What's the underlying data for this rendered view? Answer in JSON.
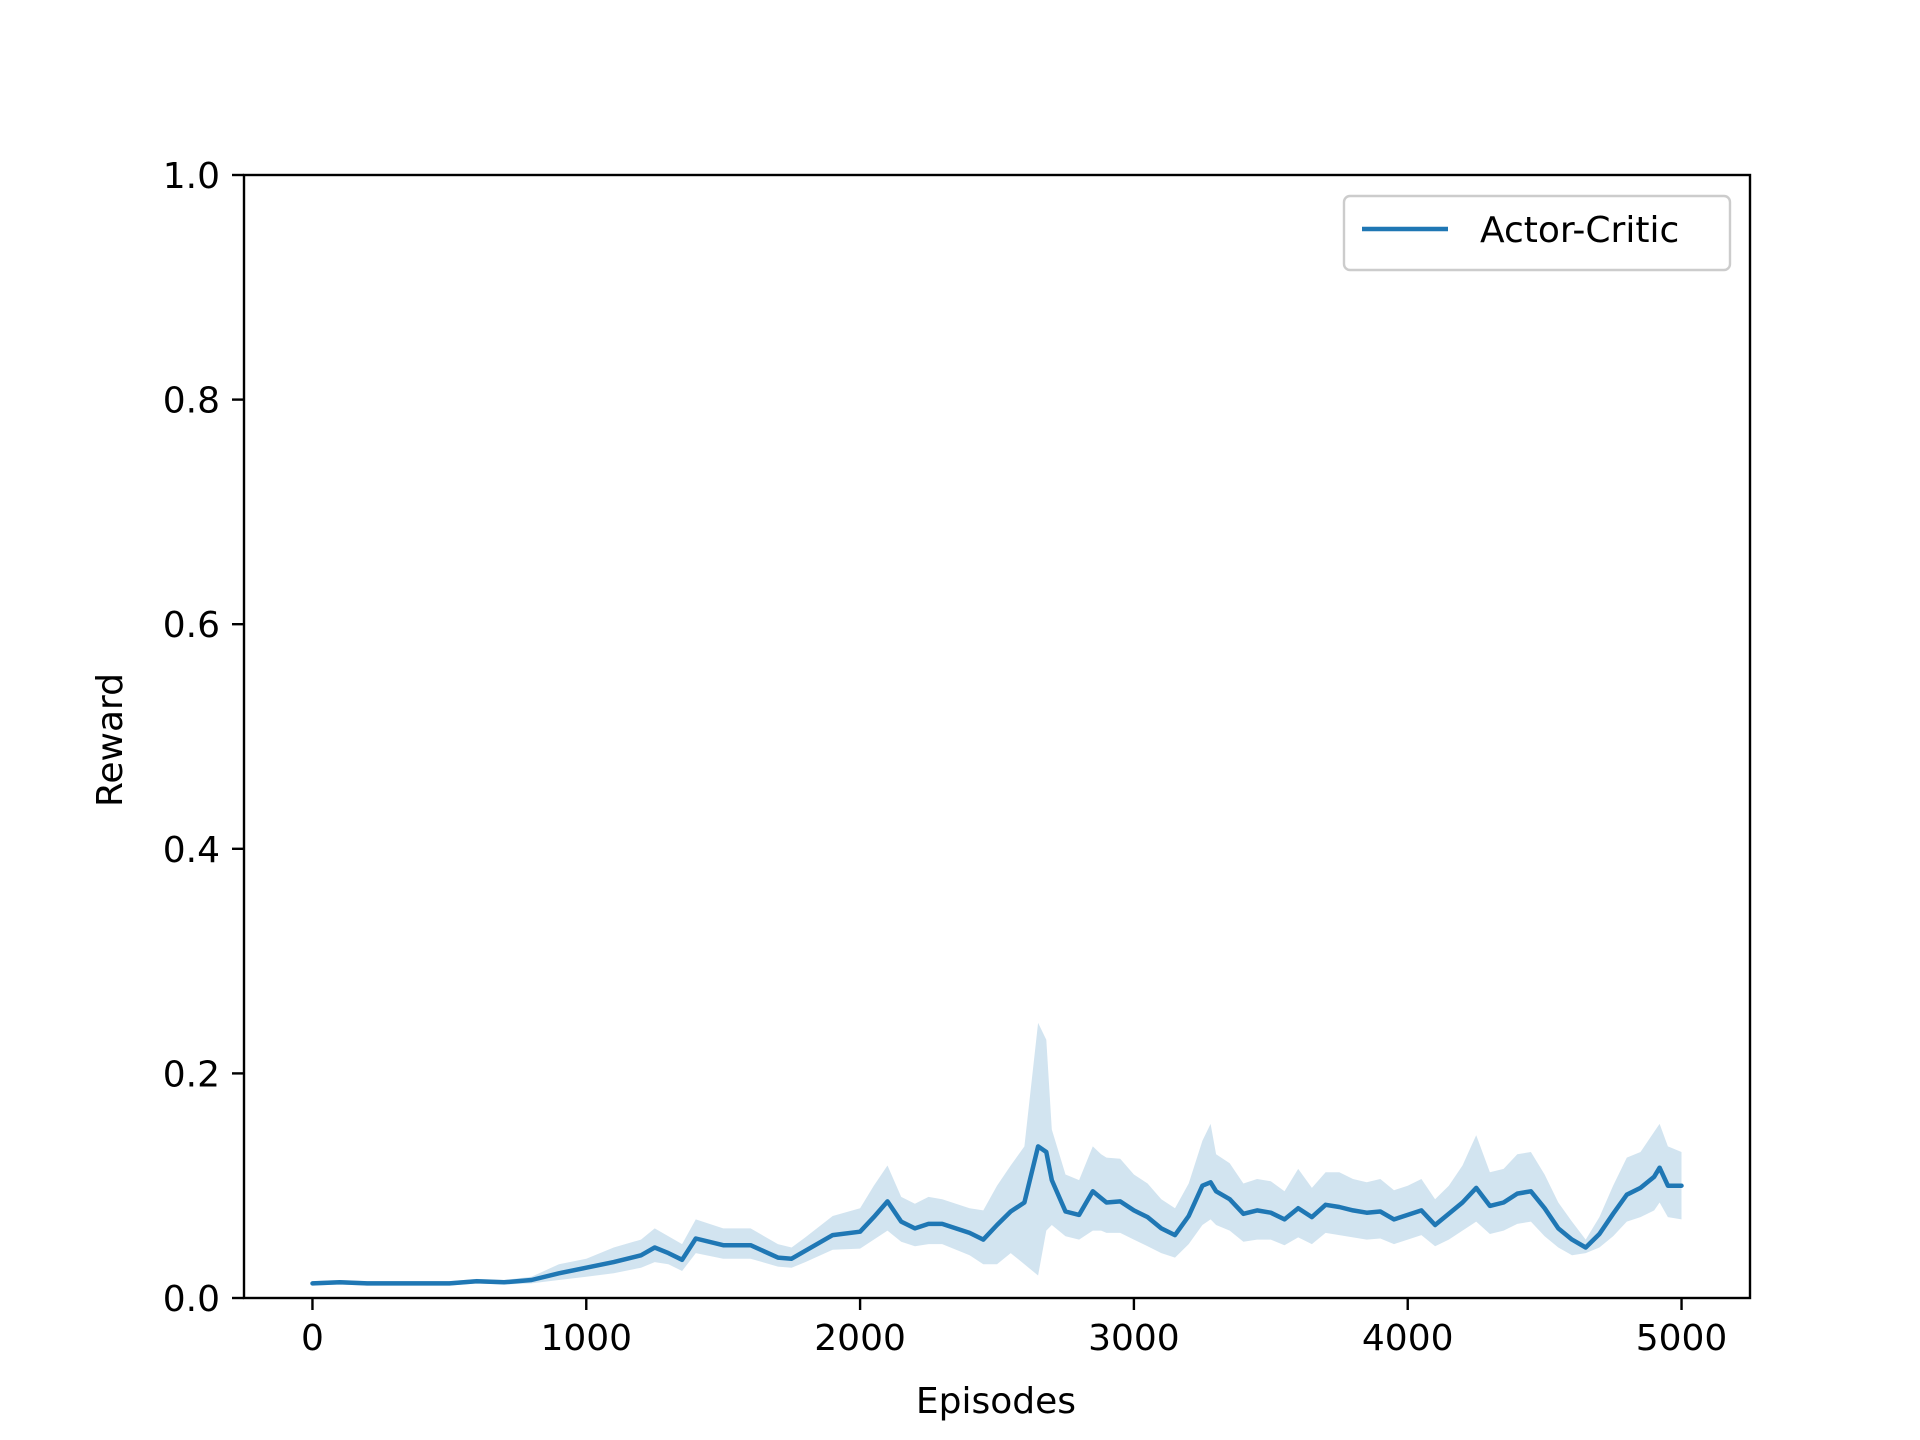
{
  "colors": {
    "series": "#1f77b4",
    "band": "#1f77b4",
    "axis": "#000000",
    "legend_border": "#cccccc",
    "background": "#ffffff"
  },
  "chart_data": {
    "type": "line",
    "title": "",
    "xlabel": "Episodes",
    "ylabel": "Reward",
    "xlim": [
      -250,
      5250
    ],
    "ylim": [
      0.0,
      1.0
    ],
    "xticks": [
      0,
      1000,
      2000,
      3000,
      4000,
      5000
    ],
    "xtick_labels": [
      "0",
      "1000",
      "2000",
      "3000",
      "4000",
      "5000"
    ],
    "yticks": [
      0.0,
      0.2,
      0.4,
      0.6,
      0.8,
      1.0
    ],
    "ytick_labels": [
      "0.0",
      "0.2",
      "0.4",
      "0.6",
      "0.8",
      "1.0"
    ],
    "grid": false,
    "legend": {
      "placement": "top-right",
      "entries": [
        "Actor-Critic"
      ]
    },
    "series": [
      {
        "name": "Actor-Critic",
        "x": [
          0,
          100,
          200,
          300,
          400,
          500,
          600,
          700,
          800,
          900,
          1000,
          1100,
          1200,
          1250,
          1300,
          1350,
          1400,
          1500,
          1600,
          1700,
          1750,
          1800,
          1900,
          2000,
          2050,
          2100,
          2150,
          2200,
          2250,
          2300,
          2400,
          2450,
          2500,
          2550,
          2600,
          2650,
          2680,
          2700,
          2750,
          2800,
          2850,
          2880,
          2900,
          2950,
          3000,
          3050,
          3100,
          3150,
          3200,
          3250,
          3280,
          3300,
          3350,
          3400,
          3450,
          3500,
          3550,
          3600,
          3650,
          3700,
          3750,
          3800,
          3850,
          3900,
          3950,
          4000,
          4050,
          4100,
          4150,
          4200,
          4250,
          4300,
          4350,
          4400,
          4450,
          4500,
          4550,
          4600,
          4650,
          4700,
          4750,
          4800,
          4850,
          4900,
          4920,
          4950,
          5000
        ],
        "y": [
          0.013,
          0.014,
          0.013,
          0.013,
          0.013,
          0.013,
          0.015,
          0.014,
          0.016,
          0.022,
          0.027,
          0.032,
          0.038,
          0.045,
          0.04,
          0.034,
          0.053,
          0.047,
          0.047,
          0.036,
          0.035,
          0.042,
          0.056,
          0.059,
          0.072,
          0.086,
          0.068,
          0.062,
          0.066,
          0.066,
          0.058,
          0.052,
          0.065,
          0.077,
          0.085,
          0.135,
          0.13,
          0.105,
          0.077,
          0.074,
          0.095,
          0.089,
          0.085,
          0.086,
          0.078,
          0.072,
          0.062,
          0.056,
          0.073,
          0.1,
          0.103,
          0.095,
          0.088,
          0.075,
          0.078,
          0.076,
          0.07,
          0.08,
          0.072,
          0.083,
          0.081,
          0.078,
          0.076,
          0.077,
          0.07,
          0.074,
          0.078,
          0.065,
          0.075,
          0.085,
          0.098,
          0.082,
          0.085,
          0.093,
          0.095,
          0.08,
          0.062,
          0.052,
          0.045,
          0.057,
          0.075,
          0.092,
          0.098,
          0.108,
          0.116,
          0.1,
          0.1
        ],
        "lower": [
          0.011,
          0.012,
          0.011,
          0.011,
          0.011,
          0.011,
          0.013,
          0.012,
          0.013,
          0.016,
          0.019,
          0.022,
          0.027,
          0.032,
          0.03,
          0.024,
          0.04,
          0.035,
          0.035,
          0.028,
          0.027,
          0.032,
          0.043,
          0.044,
          0.052,
          0.06,
          0.05,
          0.046,
          0.048,
          0.048,
          0.038,
          0.03,
          0.03,
          0.04,
          0.03,
          0.02,
          0.06,
          0.065,
          0.055,
          0.052,
          0.06,
          0.06,
          0.058,
          0.058,
          0.052,
          0.046,
          0.04,
          0.036,
          0.048,
          0.065,
          0.07,
          0.065,
          0.06,
          0.05,
          0.052,
          0.052,
          0.047,
          0.054,
          0.048,
          0.058,
          0.056,
          0.054,
          0.052,
          0.053,
          0.048,
          0.052,
          0.056,
          0.046,
          0.052,
          0.06,
          0.068,
          0.057,
          0.06,
          0.066,
          0.068,
          0.055,
          0.045,
          0.038,
          0.04,
          0.045,
          0.055,
          0.068,
          0.072,
          0.078,
          0.085,
          0.072,
          0.07
        ],
        "upper": [
          0.015,
          0.016,
          0.015,
          0.015,
          0.015,
          0.015,
          0.017,
          0.016,
          0.019,
          0.03,
          0.035,
          0.045,
          0.052,
          0.062,
          0.055,
          0.048,
          0.07,
          0.062,
          0.062,
          0.048,
          0.045,
          0.054,
          0.073,
          0.08,
          0.1,
          0.118,
          0.09,
          0.084,
          0.09,
          0.088,
          0.08,
          0.078,
          0.1,
          0.118,
          0.135,
          0.245,
          0.23,
          0.15,
          0.11,
          0.105,
          0.135,
          0.128,
          0.125,
          0.124,
          0.11,
          0.102,
          0.088,
          0.08,
          0.102,
          0.14,
          0.155,
          0.128,
          0.12,
          0.102,
          0.106,
          0.104,
          0.095,
          0.115,
          0.098,
          0.112,
          0.112,
          0.106,
          0.103,
          0.106,
          0.096,
          0.1,
          0.106,
          0.088,
          0.1,
          0.118,
          0.145,
          0.112,
          0.115,
          0.128,
          0.13,
          0.11,
          0.085,
          0.068,
          0.052,
          0.072,
          0.1,
          0.125,
          0.13,
          0.148,
          0.155,
          0.135,
          0.13
        ]
      }
    ]
  }
}
